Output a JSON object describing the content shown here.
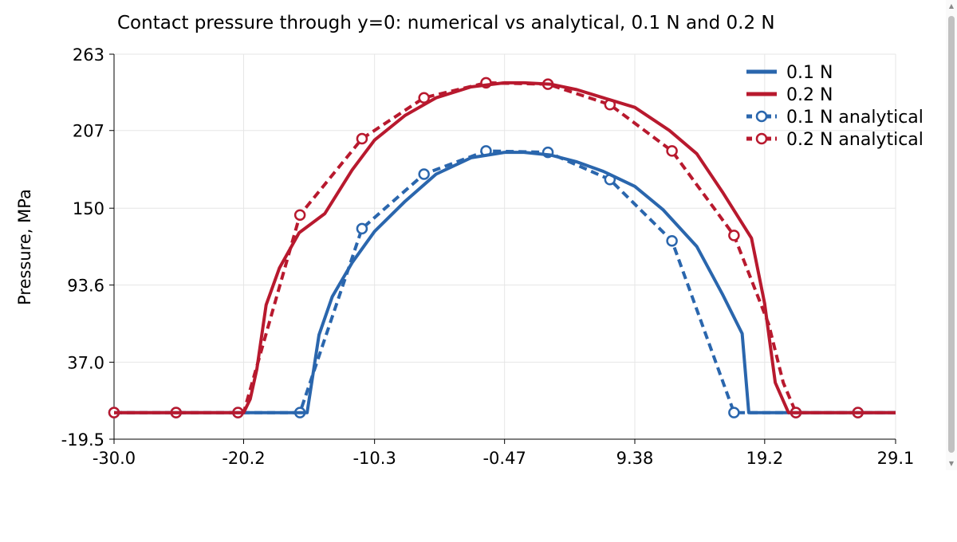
{
  "chart_data": {
    "type": "line",
    "title": "Contact pressure through y=0: numerical vs analytical, 0.1 N and 0.2 N",
    "xlabel": "",
    "ylabel": "Pressure, MPa",
    "xlim": [
      -30.0,
      29.1
    ],
    "ylim": [
      -19.5,
      263
    ],
    "x_ticks": [
      "-30.0",
      "-20.2",
      "-10.3",
      "-0.47",
      "9.38",
      "19.2",
      "29.1"
    ],
    "y_ticks": [
      "263",
      "207",
      "150",
      "93.6",
      "37.0",
      "-19.5"
    ],
    "grid": true,
    "legend_position": "top-right",
    "series": [
      {
        "name": "0.1 N",
        "style": "solid",
        "color": "#2a66ad",
        "x": [
          -30.0,
          -25.0,
          -20.0,
          -16.0,
          -15.4,
          -14.5,
          -13.5,
          -12.0,
          -10.3,
          -8.0,
          -5.65,
          -3.0,
          -0.47,
          1.0,
          3.0,
          5.0,
          7.0,
          9.38,
          11.5,
          14.06,
          16.0,
          17.5,
          18.0,
          19.2,
          22.0,
          25.0,
          29.1
        ],
        "y": [
          0,
          0,
          0,
          0,
          0,
          57,
          85,
          110,
          133,
          155,
          175,
          187,
          191,
          191,
          189,
          184,
          177,
          166,
          149,
          122,
          87,
          58,
          0,
          0,
          0,
          0,
          0
        ]
      },
      {
        "name": "0.2 N",
        "style": "solid",
        "color": "#b8192e",
        "x": [
          -30.0,
          -25.0,
          -20.2,
          -19.7,
          -19.2,
          -18.5,
          -17.5,
          -16.0,
          -14.06,
          -12.0,
          -10.3,
          -8.0,
          -5.65,
          -3.0,
          -0.47,
          1.0,
          3.0,
          5.0,
          7.0,
          9.38,
          12.0,
          14.06,
          16.0,
          18.2,
          19.2,
          20.0,
          21.0,
          22.0,
          25.0,
          29.1
        ],
        "y": [
          0,
          0,
          0,
          10,
          32,
          79,
          106,
          132,
          146,
          178,
          200,
          218,
          231,
          239,
          242,
          242,
          241,
          237,
          231,
          224,
          207,
          190,
          162,
          128,
          80,
          22,
          0,
          0,
          0,
          0
        ]
      },
      {
        "name": "0.1 N analytical",
        "style": "dashed",
        "color": "#2a66ad",
        "x": [
          -30.0,
          -25.31,
          -20.63,
          -15.94,
          -11.25,
          -6.56,
          -1.87,
          2.81,
          7.5,
          12.19,
          16.88,
          21.56,
          26.25,
          29.1
        ],
        "y": [
          0,
          0,
          0,
          0,
          135,
          175,
          192,
          191,
          171,
          126,
          0,
          0,
          0,
          0
        ]
      },
      {
        "name": "0.2 N analytical",
        "style": "dashed",
        "color": "#b8192e",
        "x": [
          -30.0,
          -25.31,
          -20.63,
          -20.2,
          -15.94,
          -11.25,
          -6.56,
          -1.87,
          2.81,
          7.5,
          12.19,
          16.88,
          19.5,
          20.6,
          21.56,
          26.25,
          29.1
        ],
        "y": [
          0,
          0,
          0,
          0,
          145,
          201,
          231,
          242,
          241,
          226,
          192,
          130,
          65,
          22,
          0,
          0,
          0
        ],
        "markers_x": [
          -30.0,
          -25.31,
          -20.63,
          -15.94,
          -11.25,
          -6.56,
          -1.87,
          2.81,
          7.5,
          12.19,
          16.88,
          21.56,
          26.25
        ],
        "markers_y": [
          0,
          0,
          0,
          145,
          201,
          231,
          242,
          241,
          226,
          192,
          130,
          0,
          0
        ]
      }
    ]
  }
}
